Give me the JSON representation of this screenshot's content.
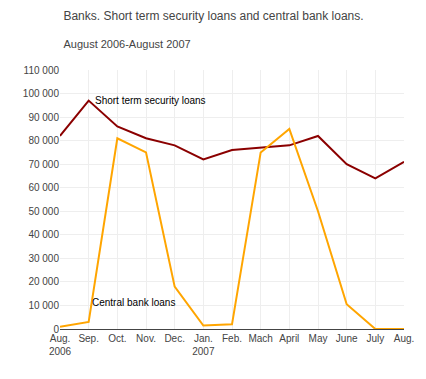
{
  "chart_data": {
    "type": "line",
    "title": "Banks. Short term security loans and central bank loans.",
    "subtitle": "August 2006-August 2007",
    "categories": [
      "Aug.\n2006",
      "Sep.",
      "Oct.",
      "Nov.",
      "Dec.",
      "Jan.\n2007",
      "Feb.",
      "Mach",
      "April",
      "May",
      "June",
      "July",
      "Aug."
    ],
    "series": [
      {
        "name": "Short term security loans",
        "color": "#8B0000",
        "values": [
          82000,
          97000,
          86000,
          81000,
          78000,
          72000,
          76000,
          77000,
          78000,
          82000,
          70000,
          64000,
          71000
        ]
      },
      {
        "name": "Central bank loans",
        "color": "#FFA500",
        "values": [
          1000,
          3000,
          81000,
          75000,
          18000,
          1500,
          2000,
          75000,
          85000,
          50000,
          10500,
          0,
          0
        ]
      }
    ],
    "annotations": [
      {
        "text": "Short term security loans",
        "x": 1.15,
        "y": 94000
      },
      {
        "text": "Central bank loans",
        "x": 1.05,
        "y": 8000
      }
    ],
    "ylim": [
      0,
      110000
    ],
    "yticks": [
      0,
      {
        "value": 10000,
        "label": "10 000"
      },
      {
        "value": 20000,
        "label": "20 000"
      },
      {
        "value": 30000,
        "label": "30 000"
      },
      {
        "value": 40000,
        "label": "40 000"
      },
      {
        "value": 50000,
        "label": "50 000"
      },
      {
        "value": 60000,
        "label": "60 000"
      },
      {
        "value": 70000,
        "label": "70 000"
      },
      {
        "value": 80000,
        "label": "80 000"
      },
      {
        "value": 90000,
        "label": "90 000"
      },
      {
        "value": 100000,
        "label": "100 000"
      },
      {
        "value": 110000,
        "label": "110 000"
      }
    ],
    "grid": true
  }
}
